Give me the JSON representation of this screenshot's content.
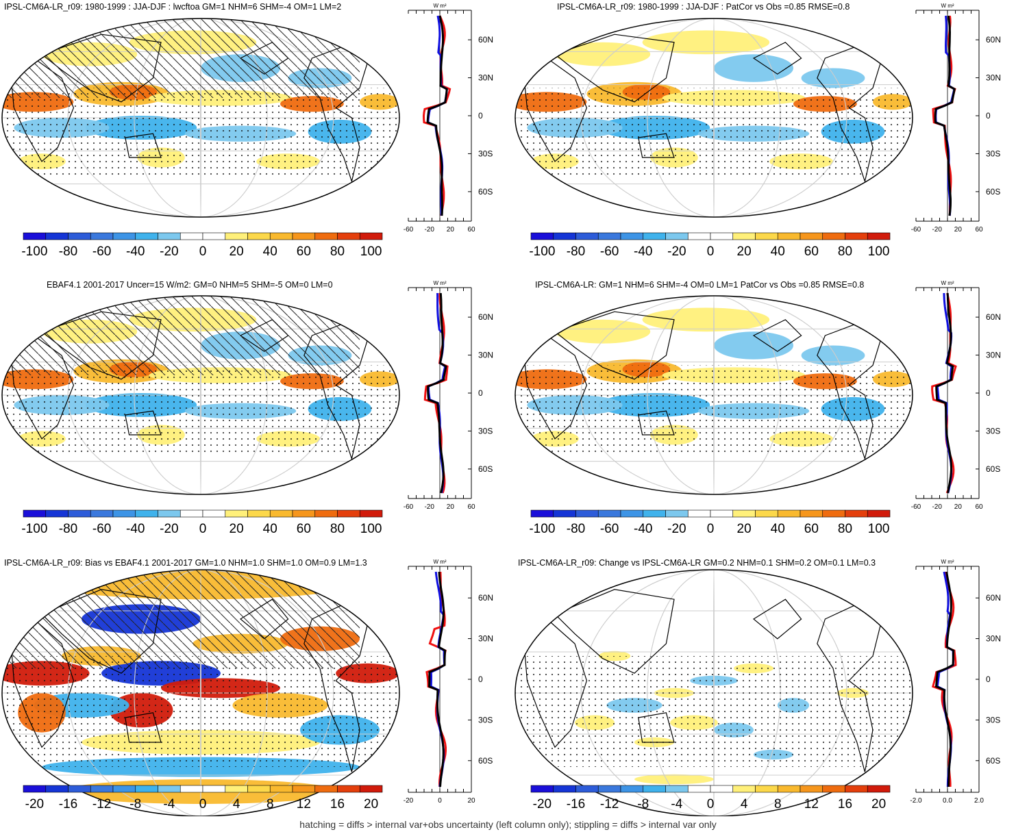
{
  "panels": [
    {
      "title": "IPSL-CM6A-LR_r09: 1980-1999 : JJA-DJF : lwcftoa GM=1 NHM=6 SHM=-4 OM=1 LM=2",
      "hatching": true,
      "colorbar_labels": [
        "-100",
        "-80",
        "-60",
        "-40",
        "-20",
        "0",
        "20",
        "40",
        "60",
        "80",
        "100"
      ],
      "profile_unit": "W m²",
      "profile_xticks": [
        "-60",
        "-20",
        "20",
        "60"
      ],
      "profile_xrange": [
        -60,
        60
      ],
      "lat_labels": [
        "60N",
        "30N",
        "0",
        "30S",
        "60S"
      ]
    },
    {
      "title": "IPSL-CM6A-LR_r09: 1980-1999 : JJA-DJF : PatCor vs Obs =0.85 RMSE=0.8",
      "hatching": false,
      "colorbar_labels": [
        "-100",
        "-80",
        "-60",
        "-40",
        "-20",
        "0",
        "20",
        "40",
        "60",
        "80",
        "100"
      ],
      "profile_unit": "W m²",
      "profile_xticks": [
        "-60",
        "-20",
        "20",
        "60"
      ],
      "profile_xrange": [
        -60,
        60
      ],
      "lat_labels": [
        "60N",
        "30N",
        "0",
        "30S",
        "60S"
      ]
    },
    {
      "title": "EBAF4.1 2001-2017 Uncer=15 W/m2: GM=0 NHM=5 SHM=-5 OM=0 LM=0",
      "hatching": true,
      "colorbar_labels": [
        "-100",
        "-80",
        "-60",
        "-40",
        "-20",
        "0",
        "20",
        "40",
        "60",
        "80",
        "100"
      ],
      "profile_unit": "W m²",
      "profile_xticks": [
        "-60",
        "-20",
        "20",
        "60"
      ],
      "profile_xrange": [
        -60,
        60
      ],
      "lat_labels": [
        "60N",
        "30N",
        "0",
        "30S",
        "60S"
      ]
    },
    {
      "title": "IPSL-CM6A-LR: GM=1 NHM=6 SHM=-4 OM=0 LM=1 PatCor vs Obs =0.85 RMSE=0.8",
      "hatching": false,
      "colorbar_labels": [
        "-100",
        "-80",
        "-60",
        "-40",
        "-20",
        "0",
        "20",
        "40",
        "60",
        "80",
        "100"
      ],
      "profile_unit": "W m²",
      "profile_xticks": [
        "-60",
        "-20",
        "20",
        "60"
      ],
      "profile_xrange": [
        -60,
        60
      ],
      "lat_labels": [
        "60N",
        "30N",
        "0",
        "30S",
        "60S"
      ]
    },
    {
      "title": "IPSL-CM6A-LR_r09: Bias vs EBAF4.1 2001-2017 GM=1.0 NHM=1.0 SHM=1.0 OM=0.9 LM=1.3",
      "hatching": true,
      "colorbar_labels": [
        "-20",
        "-16",
        "-12",
        "-8",
        "-4",
        "0",
        "4",
        "8",
        "12",
        "16",
        "20"
      ],
      "profile_unit": "W m²",
      "profile_xticks": [
        "-20",
        "0",
        "20"
      ],
      "profile_xrange": [
        -20,
        20
      ],
      "lat_labels": [
        "60N",
        "30N",
        "0",
        "30S",
        "60S"
      ]
    },
    {
      "title": "IPSL-CM6A-LR_r09: Change vs IPSL-CM6A-LR GM=0.2 NHM=0.1 SHM=0.2 OM=0.1 LM=0.3",
      "hatching": false,
      "colorbar_labels": [
        "-20",
        "-16",
        "-12",
        "-8",
        "-4",
        "0",
        "4",
        "8",
        "12",
        "16",
        "20"
      ],
      "profile_unit": "W m²",
      "profile_xticks": [
        "-2.0",
        "0.0",
        "2.0"
      ],
      "profile_xrange": [
        -2.0,
        2.0
      ],
      "lat_labels": [
        "60N",
        "30N",
        "0",
        "30S",
        "60S"
      ]
    }
  ],
  "colors": {
    "palette": [
      "#1a0fd9",
      "#1535d6",
      "#2d5cd9",
      "#3a78dd",
      "#3d94e6",
      "#3fb2ec",
      "#7cc8ee",
      "#ffffff",
      "#ffffff",
      "#fff07a",
      "#fcd84a",
      "#f9b92e",
      "#f6961c",
      "#ef6c0f",
      "#e43f0c",
      "#d11b0b"
    ],
    "profile_red": "#f01010",
    "profile_blue": "#1010e0",
    "profile_black": "#000000"
  },
  "footer": "hatching = diffs > internal var+obs uncertainty (left column only); stippling = diffs > internal var only"
}
